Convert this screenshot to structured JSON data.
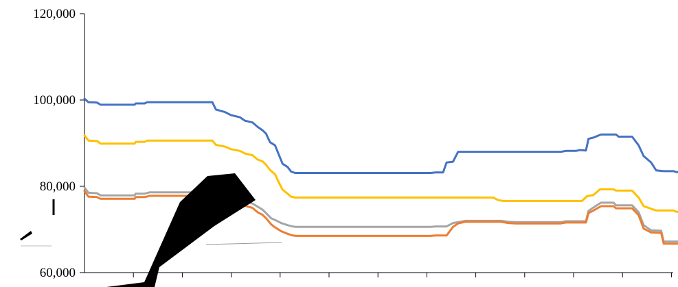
{
  "chart_data": {
    "type": "line",
    "title": "",
    "xlabel": "",
    "ylabel": "",
    "ylim": [
      60000,
      120000
    ],
    "yticks": [
      {
        "value": 60000,
        "label": "60,000"
      },
      {
        "value": 80000,
        "label": "80,000"
      },
      {
        "value": 100000,
        "label": "100,000"
      },
      {
        "value": 120000,
        "label": "120,000"
      }
    ],
    "x_tick_count": 12,
    "grid": false,
    "legend": "none",
    "series": [
      {
        "color": "#4472C4",
        "points": [
          [
            0,
            100300
          ],
          [
            0.08,
            99500
          ],
          [
            0.25,
            99400
          ],
          [
            0.32,
            98900
          ],
          [
            1.0,
            98900
          ],
          [
            1.02,
            99200
          ],
          [
            1.2,
            99200
          ],
          [
            1.25,
            99500
          ],
          [
            2.55,
            99500
          ],
          [
            2.62,
            97800
          ],
          [
            2.8,
            97200
          ],
          [
            2.92,
            96500
          ],
          [
            3.1,
            96000
          ],
          [
            3.2,
            95200
          ],
          [
            3.35,
            94800
          ],
          [
            3.45,
            93800
          ],
          [
            3.55,
            93000
          ],
          [
            3.62,
            92200
          ],
          [
            3.7,
            90200
          ],
          [
            3.8,
            89500
          ],
          [
            3.88,
            87200
          ],
          [
            3.95,
            85200
          ],
          [
            4.05,
            84500
          ],
          [
            4.12,
            83400
          ],
          [
            4.2,
            83100
          ],
          [
            6.9,
            83100
          ],
          [
            7.0,
            83200
          ],
          [
            7.15,
            83200
          ],
          [
            7.22,
            85500
          ],
          [
            7.35,
            85700
          ],
          [
            7.45,
            88000
          ],
          [
            9.5,
            88000
          ],
          [
            9.6,
            88200
          ],
          [
            9.8,
            88200
          ],
          [
            9.88,
            88400
          ],
          [
            10.0,
            88300
          ],
          [
            10.05,
            91000
          ],
          [
            10.15,
            91300
          ],
          [
            10.3,
            92000
          ],
          [
            10.6,
            92000
          ],
          [
            10.65,
            91500
          ],
          [
            10.92,
            91500
          ],
          [
            11.05,
            89500
          ],
          [
            11.15,
            87000
          ],
          [
            11.3,
            85500
          ],
          [
            11.4,
            83700
          ],
          [
            11.55,
            83500
          ],
          [
            11.75,
            83500
          ],
          [
            11.8,
            83300
          ],
          [
            12.0,
            83300
          ],
          [
            12.05,
            82100
          ],
          [
            12.75,
            82100
          ]
        ]
      },
      {
        "color": "#FFC000",
        "points": [
          [
            0,
            91800
          ],
          [
            0.08,
            90600
          ],
          [
            0.25,
            90500
          ],
          [
            0.32,
            89900
          ],
          [
            1.0,
            89900
          ],
          [
            1.02,
            90300
          ],
          [
            1.2,
            90300
          ],
          [
            1.25,
            90600
          ],
          [
            2.55,
            90600
          ],
          [
            2.62,
            89600
          ],
          [
            2.8,
            89200
          ],
          [
            2.92,
            88600
          ],
          [
            3.1,
            88200
          ],
          [
            3.2,
            87600
          ],
          [
            3.35,
            87200
          ],
          [
            3.45,
            86200
          ],
          [
            3.55,
            85800
          ],
          [
            3.62,
            85000
          ],
          [
            3.7,
            83800
          ],
          [
            3.8,
            82800
          ],
          [
            3.88,
            80800
          ],
          [
            3.95,
            79200
          ],
          [
            4.05,
            78300
          ],
          [
            4.12,
            77600
          ],
          [
            4.2,
            77400
          ],
          [
            8.15,
            77400
          ],
          [
            8.25,
            76800
          ],
          [
            8.35,
            76600
          ],
          [
            9.92,
            76600
          ],
          [
            10.02,
            77700
          ],
          [
            10.15,
            78000
          ],
          [
            10.28,
            79300
          ],
          [
            10.55,
            79300
          ],
          [
            10.6,
            79000
          ],
          [
            10.92,
            79000
          ],
          [
            11.05,
            77400
          ],
          [
            11.15,
            75400
          ],
          [
            11.3,
            74800
          ],
          [
            11.4,
            74400
          ],
          [
            11.75,
            74400
          ],
          [
            11.8,
            74100
          ],
          [
            12.0,
            74100
          ],
          [
            12.05,
            73600
          ],
          [
            12.75,
            73600
          ]
        ]
      },
      {
        "color": "#A5A5A5",
        "points": [
          [
            0,
            79700
          ],
          [
            0.08,
            78500
          ],
          [
            0.25,
            78400
          ],
          [
            0.32,
            77900
          ],
          [
            1.0,
            77900
          ],
          [
            1.02,
            78300
          ],
          [
            1.2,
            78300
          ],
          [
            1.3,
            78600
          ],
          [
            2.55,
            78600
          ],
          [
            2.62,
            78200
          ],
          [
            2.8,
            77800
          ],
          [
            3.05,
            76900
          ],
          [
            3.2,
            76500
          ],
          [
            3.35,
            76000
          ],
          [
            3.45,
            75300
          ],
          [
            3.55,
            74600
          ],
          [
            3.62,
            73800
          ],
          [
            3.72,
            72600
          ],
          [
            3.8,
            72200
          ],
          [
            3.92,
            71500
          ],
          [
            4.05,
            71000
          ],
          [
            4.15,
            70700
          ],
          [
            4.22,
            70600
          ],
          [
            6.9,
            70600
          ],
          [
            7.0,
            70700
          ],
          [
            7.22,
            70700
          ],
          [
            7.35,
            71500
          ],
          [
            7.45,
            71700
          ],
          [
            7.6,
            72000
          ],
          [
            8.3,
            72000
          ],
          [
            8.45,
            71800
          ],
          [
            8.6,
            71700
          ],
          [
            9.5,
            71700
          ],
          [
            9.6,
            71900
          ],
          [
            10.0,
            71900
          ],
          [
            10.05,
            74300
          ],
          [
            10.15,
            75100
          ],
          [
            10.3,
            76200
          ],
          [
            10.55,
            76200
          ],
          [
            10.6,
            75600
          ],
          [
            10.92,
            75600
          ],
          [
            11.05,
            74000
          ],
          [
            11.15,
            71000
          ],
          [
            11.3,
            69800
          ],
          [
            11.5,
            69700
          ],
          [
            11.55,
            67200
          ],
          [
            12.0,
            67200
          ],
          [
            12.05,
            66700
          ],
          [
            12.75,
            66700
          ]
        ]
      },
      {
        "color": "#ED7D31",
        "points": [
          [
            0,
            78900
          ],
          [
            0.08,
            77600
          ],
          [
            0.25,
            77500
          ],
          [
            0.32,
            77100
          ],
          [
            1.0,
            77100
          ],
          [
            1.02,
            77500
          ],
          [
            1.2,
            77500
          ],
          [
            1.3,
            77800
          ],
          [
            2.55,
            77800
          ],
          [
            2.62,
            77300
          ],
          [
            2.8,
            76900
          ],
          [
            3.05,
            76000
          ],
          [
            3.2,
            75500
          ],
          [
            3.35,
            75000
          ],
          [
            3.45,
            74000
          ],
          [
            3.55,
            73400
          ],
          [
            3.62,
            72600
          ],
          [
            3.72,
            71200
          ],
          [
            3.8,
            70500
          ],
          [
            3.92,
            69600
          ],
          [
            4.05,
            69000
          ],
          [
            4.15,
            68600
          ],
          [
            4.22,
            68500
          ],
          [
            6.9,
            68500
          ],
          [
            7.0,
            68600
          ],
          [
            7.22,
            68600
          ],
          [
            7.35,
            70600
          ],
          [
            7.45,
            71400
          ],
          [
            7.6,
            71800
          ],
          [
            8.3,
            71800
          ],
          [
            8.45,
            71500
          ],
          [
            8.6,
            71400
          ],
          [
            9.5,
            71400
          ],
          [
            9.6,
            71600
          ],
          [
            10.0,
            71600
          ],
          [
            10.05,
            73800
          ],
          [
            10.15,
            74400
          ],
          [
            10.3,
            75400
          ],
          [
            10.55,
            75400
          ],
          [
            10.6,
            74900
          ],
          [
            10.92,
            74900
          ],
          [
            11.05,
            73300
          ],
          [
            11.15,
            70200
          ],
          [
            11.3,
            69300
          ],
          [
            11.5,
            69200
          ],
          [
            11.55,
            66700
          ],
          [
            12.0,
            66700
          ],
          [
            12.05,
            66300
          ],
          [
            12.75,
            66300
          ]
        ]
      }
    ],
    "overlay_color": "#000000"
  }
}
